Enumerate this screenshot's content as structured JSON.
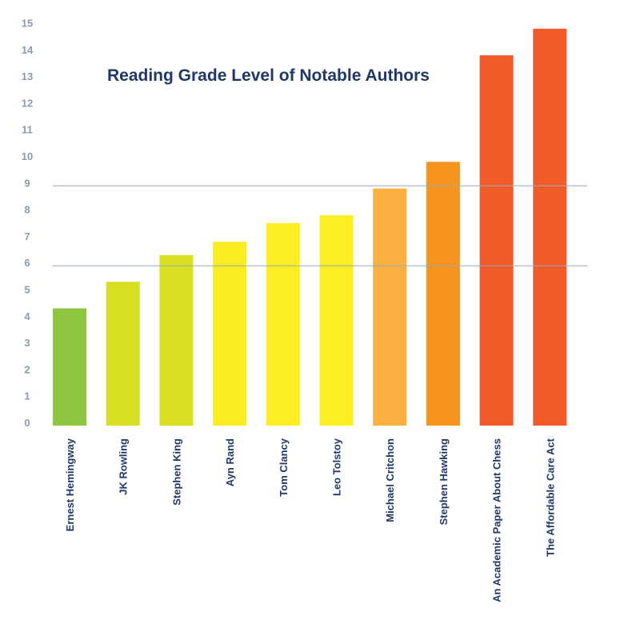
{
  "chart_data": {
    "type": "bar",
    "title": "Reading Grade Level of Notable Authors",
    "xlabel": "",
    "ylabel": "",
    "ylim": [
      0,
      15
    ],
    "yticks": [
      "0",
      "1",
      "2",
      "3",
      "4",
      "5",
      "6",
      "7",
      "8",
      "9",
      "10",
      "11",
      "12",
      "13",
      "14",
      "15"
    ],
    "grid": false,
    "reference_lines": [
      6,
      9
    ],
    "reference_line_color": "#9aa9c2",
    "categories": [
      "Ernest Hemingway",
      "JK Rowling",
      "Stephen King",
      "Ayn Rand",
      "Tom Clancy",
      "Leo Tolstoy",
      "Michael Critchon",
      "Stephen Hawking",
      "An Academic Paper About Chess",
      "The Affordable Care Act"
    ],
    "values": [
      4.4,
      5.4,
      6.4,
      6.9,
      7.6,
      7.9,
      8.9,
      9.9,
      13.9,
      14.9
    ],
    "colors": [
      "#8dc63f",
      "#d7df23",
      "#d9e021",
      "#fbec21",
      "#fcee21",
      "#fcee21",
      "#fbb040",
      "#f7941d",
      "#f15a29",
      "#f15a29"
    ]
  }
}
